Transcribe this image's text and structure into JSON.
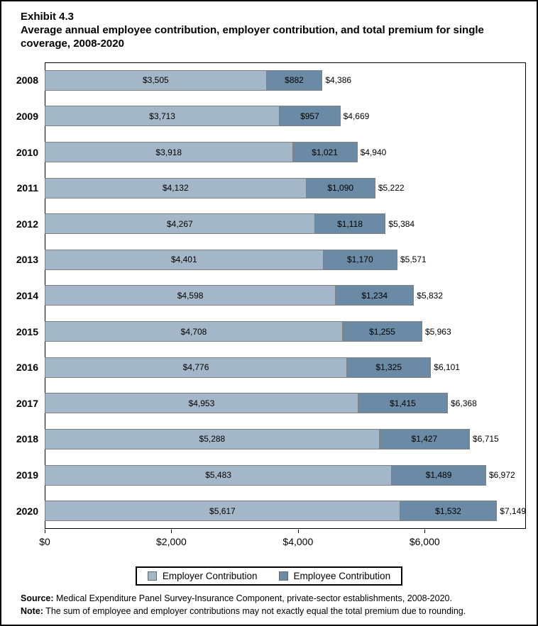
{
  "header": {
    "exhibit": "Exhibit 4.3",
    "title_line1": "Average annual employee contribution, employer contribution, and total premium for single",
    "title_line2": "coverage, 2008-2020"
  },
  "chart_data": {
    "type": "bar",
    "orientation": "horizontal",
    "stacked": true,
    "grid": false,
    "legend_position": "bottom",
    "categories": [
      "2008",
      "2009",
      "2010",
      "2011",
      "2012",
      "2013",
      "2014",
      "2015",
      "2016",
      "2017",
      "2018",
      "2019",
      "2020"
    ],
    "series": [
      {
        "name": "Employer Contribution",
        "color": "#a4b7c9",
        "values": [
          3505,
          3713,
          3918,
          4132,
          4267,
          4401,
          4598,
          4708,
          4776,
          4953,
          5288,
          5483,
          5617
        ]
      },
      {
        "name": "Employee Contribution",
        "color": "#6a8aa5",
        "values": [
          882,
          957,
          1021,
          1090,
          1118,
          1170,
          1234,
          1255,
          1325,
          1415,
          1427,
          1489,
          1532
        ]
      }
    ],
    "totals": [
      4386,
      4669,
      4940,
      5222,
      5384,
      5571,
      5832,
      5963,
      6101,
      6368,
      6715,
      6972,
      7149
    ],
    "xlim": [
      0,
      7600
    ],
    "x_ticks": [
      {
        "value": 0,
        "label": "$0"
      },
      {
        "value": 2000,
        "label": "$2,000"
      },
      {
        "value": 4000,
        "label": "$4,000"
      },
      {
        "value": 6000,
        "label": "$6,000"
      }
    ]
  },
  "legend": {
    "items": [
      {
        "label": "Employer Contribution",
        "color": "#a4b7c9"
      },
      {
        "label": "Employee Contribution",
        "color": "#6a8aa5"
      }
    ]
  },
  "footer": {
    "source_label": "Source:",
    "source_text": " Medical Expenditure Panel Survey-Insurance Component, private-sector establishments, 2008-2020.",
    "note_label": "Note:",
    "note_text": " The sum of employee and employer contributions may not exactly equal the total premium due to rounding."
  },
  "colors": {
    "bar_border": "#808080",
    "plot_border": "#000000",
    "page_border": "#000000"
  }
}
